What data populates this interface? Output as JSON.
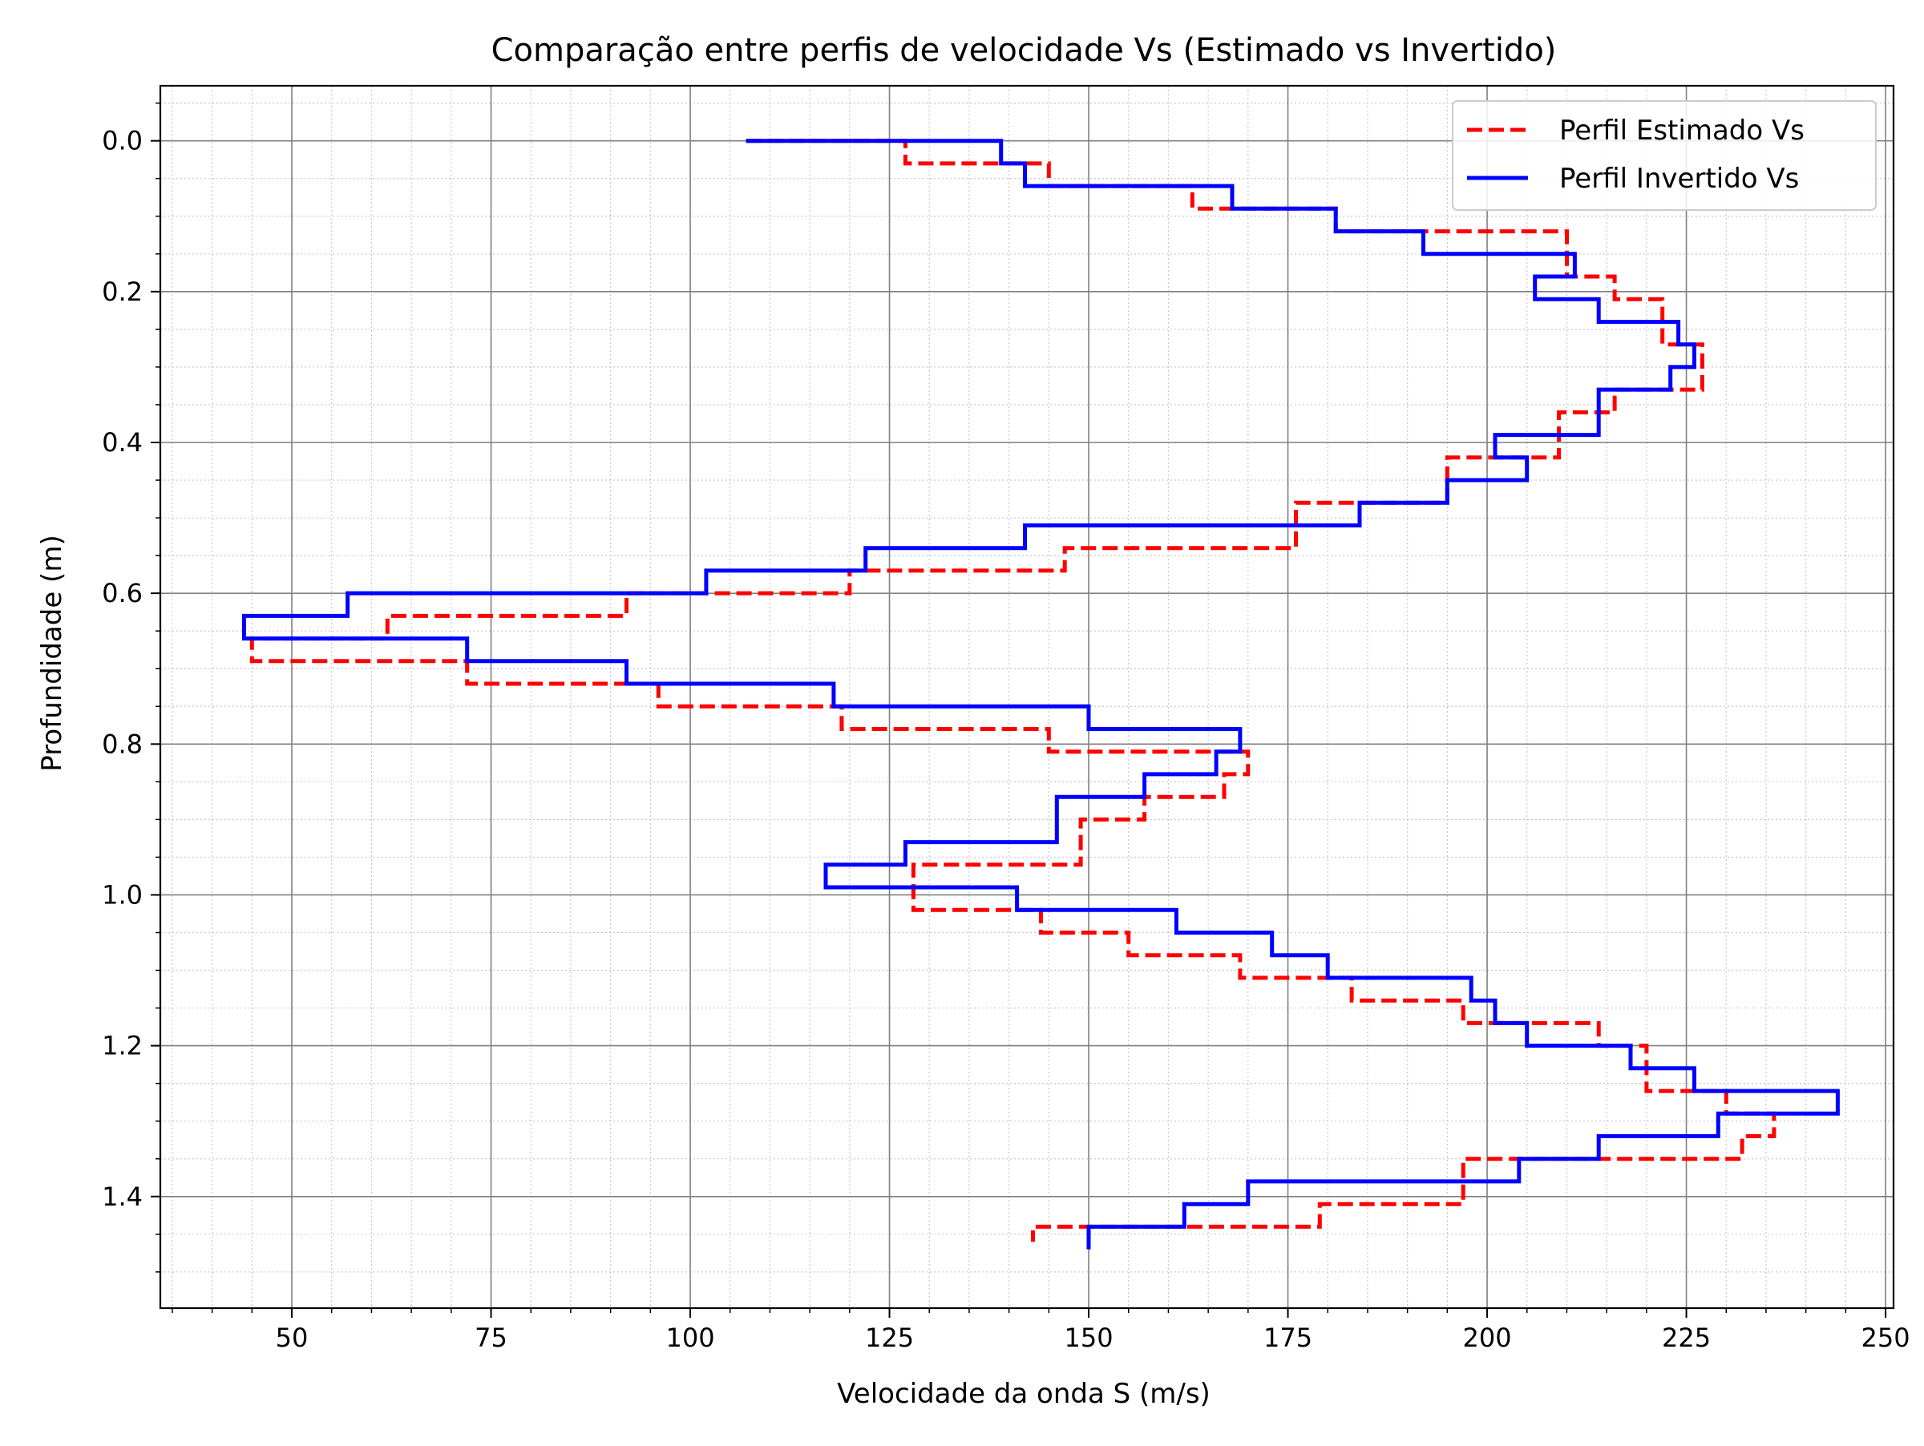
{
  "chart_data": {
    "type": "line",
    "title": "Comparação entre perfis de velocidade Vs (Estimado vs Invertido)",
    "xlabel": "Velocidade da onda S (m/s)",
    "ylabel": "Profundidade (m)",
    "xlim": [
      33.5,
      251.0
    ],
    "ylim": [
      1.548,
      -0.073
    ],
    "y_inverted": true,
    "xticks": [
      50,
      75,
      100,
      125,
      150,
      175,
      200,
      225,
      250
    ],
    "yticks": [
      0.0,
      0.2,
      0.4,
      0.6,
      0.8,
      1.0,
      1.2,
      1.4
    ],
    "xtick_labels": [
      "50",
      "75",
      "100",
      "125",
      "150",
      "175",
      "200",
      "225",
      "250"
    ],
    "ytick_labels": [
      "0.0",
      "0.2",
      "0.4",
      "0.6",
      "0.8",
      "1.0",
      "1.2",
      "1.4"
    ],
    "grid": true,
    "minor_grid": true,
    "legend_position": "top-right",
    "series": [
      {
        "name": "Perfil Estimado Vs",
        "color": "#ff0000",
        "style": "dashed",
        "x": [
          107,
          127,
          127,
          145,
          145,
          163,
          163,
          181,
          181,
          210,
          210,
          216,
          216,
          222,
          222,
          227,
          227,
          216,
          216,
          209,
          209,
          195,
          195,
          176,
          176,
          147,
          147,
          120,
          120,
          92,
          92,
          62,
          62,
          45,
          45,
          72,
          72,
          96,
          96,
          119,
          119,
          145,
          145,
          170,
          170,
          167,
          167,
          157,
          157,
          149,
          149,
          128,
          128,
          128,
          128,
          144,
          144,
          155,
          155,
          169,
          169,
          183,
          183,
          197,
          197,
          214,
          214,
          220,
          220,
          230,
          230,
          236,
          236,
          232,
          232,
          197,
          197,
          179,
          179,
          143,
          143
        ],
        "y": [
          0.0,
          0.0,
          0.03,
          0.03,
          0.06,
          0.06,
          0.09,
          0.09,
          0.12,
          0.12,
          0.18,
          0.18,
          0.21,
          0.21,
          0.27,
          0.27,
          0.33,
          0.33,
          0.36,
          0.36,
          0.42,
          0.42,
          0.48,
          0.48,
          0.54,
          0.54,
          0.57,
          0.57,
          0.6,
          0.6,
          0.63,
          0.63,
          0.66,
          0.66,
          0.69,
          0.69,
          0.72,
          0.72,
          0.75,
          0.75,
          0.78,
          0.78,
          0.81,
          0.81,
          0.84,
          0.84,
          0.87,
          0.87,
          0.9,
          0.9,
          0.96,
          0.96,
          0.99,
          0.99,
          1.02,
          1.02,
          1.05,
          1.05,
          1.08,
          1.08,
          1.11,
          1.11,
          1.14,
          1.14,
          1.17,
          1.17,
          1.2,
          1.2,
          1.26,
          1.26,
          1.29,
          1.29,
          1.32,
          1.32,
          1.35,
          1.35,
          1.41,
          1.41,
          1.44,
          1.44,
          1.46
        ]
      },
      {
        "name": "Perfil Invertido Vs",
        "color": "#0000ff",
        "style": "solid",
        "x": [
          107,
          139,
          139,
          142,
          142,
          168,
          168,
          181,
          181,
          192,
          192,
          211,
          211,
          206,
          206,
          214,
          214,
          224,
          224,
          226,
          226,
          223,
          223,
          214,
          214,
          201,
          201,
          205,
          205,
          195,
          195,
          184,
          184,
          142,
          142,
          122,
          122,
          102,
          102,
          57,
          57,
          44,
          44,
          72,
          72,
          92,
          92,
          118,
          118,
          150,
          150,
          169,
          169,
          166,
          166,
          157,
          157,
          146,
          146,
          127,
          127,
          117,
          117,
          141,
          141,
          161,
          161,
          173,
          173,
          180,
          180,
          198,
          198,
          201,
          201,
          205,
          205,
          218,
          218,
          226,
          226,
          244,
          244,
          229,
          229,
          214,
          214,
          204,
          204,
          170,
          170,
          162,
          162,
          150,
          150
        ],
        "y": [
          0.0,
          0.0,
          0.03,
          0.03,
          0.06,
          0.06,
          0.09,
          0.09,
          0.12,
          0.12,
          0.15,
          0.15,
          0.18,
          0.18,
          0.21,
          0.21,
          0.24,
          0.24,
          0.27,
          0.27,
          0.3,
          0.3,
          0.33,
          0.33,
          0.39,
          0.39,
          0.42,
          0.42,
          0.45,
          0.45,
          0.48,
          0.48,
          0.51,
          0.51,
          0.54,
          0.54,
          0.57,
          0.57,
          0.6,
          0.6,
          0.63,
          0.63,
          0.66,
          0.66,
          0.69,
          0.69,
          0.72,
          0.72,
          0.75,
          0.75,
          0.78,
          0.78,
          0.81,
          0.81,
          0.84,
          0.84,
          0.87,
          0.87,
          0.93,
          0.93,
          0.96,
          0.96,
          0.99,
          0.99,
          1.02,
          1.02,
          1.05,
          1.05,
          1.08,
          1.08,
          1.11,
          1.11,
          1.14,
          1.14,
          1.17,
          1.17,
          1.2,
          1.2,
          1.23,
          1.23,
          1.26,
          1.26,
          1.29,
          1.29,
          1.32,
          1.32,
          1.35,
          1.35,
          1.38,
          1.38,
          1.41,
          1.41,
          1.44,
          1.44,
          1.47
        ]
      }
    ]
  }
}
